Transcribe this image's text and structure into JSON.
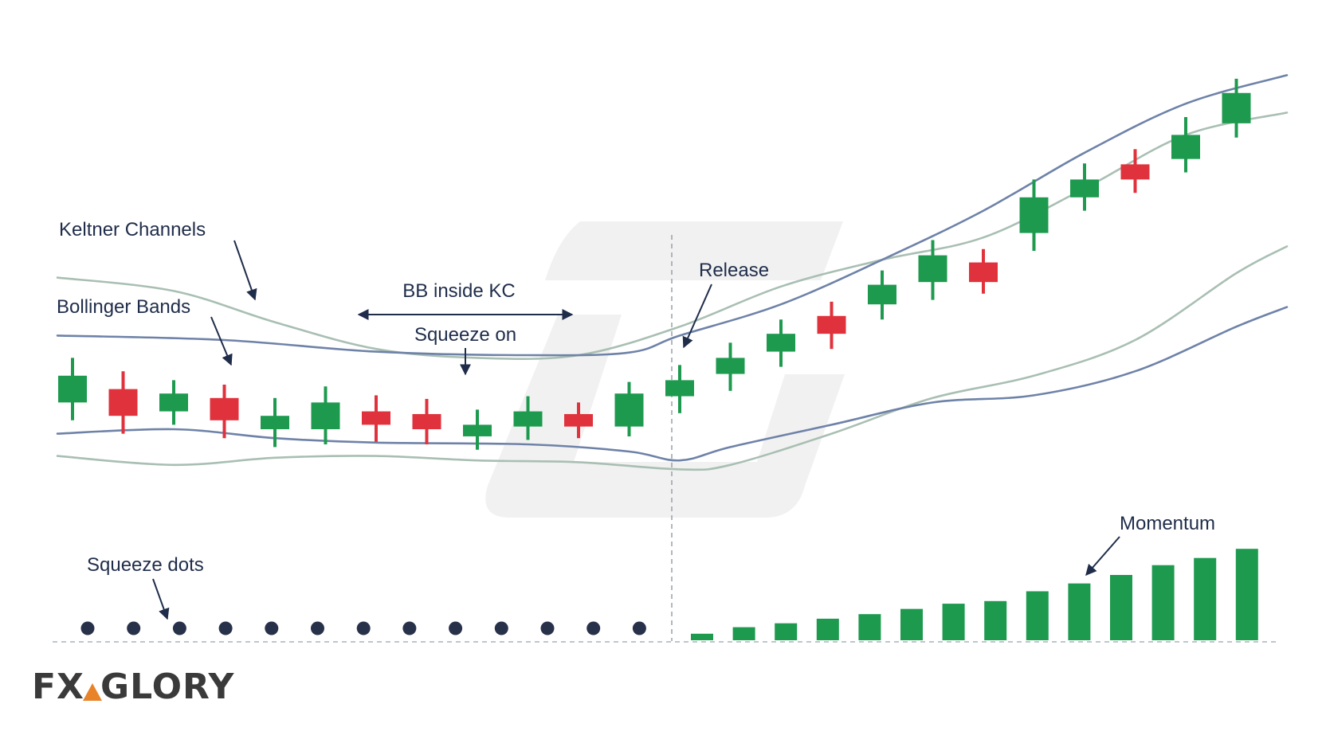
{
  "colors": {
    "bull": "#1e9a4f",
    "bear": "#e0323c",
    "bollinger": "#6e82a8",
    "keltner": "#a9bfb3",
    "squeeze_dot": "#27324a",
    "momentum": "#1e9a4f",
    "annotation": "#1f2d4a",
    "logo_text": "#3a3a3a",
    "logo_accent": "#e8832a",
    "watermark": "#f0f0f0"
  },
  "chart_data": {
    "type": "candlestick",
    "candles": [
      {
        "open": 1.1,
        "close": 0.8,
        "high": 1.3,
        "low": 0.6
      },
      {
        "open": 0.95,
        "close": 0.65,
        "high": 1.15,
        "low": 0.45
      },
      {
        "open": 0.9,
        "close": 0.7,
        "high": 1.05,
        "low": 0.55
      },
      {
        "open": 0.85,
        "close": 0.6,
        "high": 1.0,
        "low": 0.4
      },
      {
        "open": 0.65,
        "close": 0.5,
        "high": 0.85,
        "low": 0.3
      },
      {
        "open": 0.8,
        "close": 0.5,
        "high": 0.98,
        "low": 0.33
      },
      {
        "open": 0.7,
        "close": 0.55,
        "high": 0.88,
        "low": 0.36
      },
      {
        "open": 0.67,
        "close": 0.5,
        "high": 0.84,
        "low": 0.33
      },
      {
        "open": 0.55,
        "close": 0.42,
        "high": 0.72,
        "low": 0.27
      },
      {
        "open": 0.7,
        "close": 0.53,
        "high": 0.87,
        "low": 0.38
      },
      {
        "open": 0.67,
        "close": 0.53,
        "high": 0.8,
        "low": 0.4
      },
      {
        "open": 0.9,
        "close": 0.53,
        "high": 1.03,
        "low": 0.42
      },
      {
        "open": 1.05,
        "close": 0.87,
        "high": 1.22,
        "low": 0.68
      },
      {
        "open": 1.3,
        "close": 1.12,
        "high": 1.47,
        "low": 0.93
      },
      {
        "open": 1.57,
        "close": 1.37,
        "high": 1.73,
        "low": 1.2
      },
      {
        "open": 1.77,
        "close": 1.57,
        "high": 1.93,
        "low": 1.4
      },
      {
        "open": 2.12,
        "close": 1.9,
        "high": 2.28,
        "low": 1.73
      },
      {
        "open": 2.45,
        "close": 2.15,
        "high": 2.62,
        "low": 1.95
      },
      {
        "open": 2.37,
        "close": 2.15,
        "high": 2.52,
        "low": 2.02
      },
      {
        "open": 3.1,
        "close": 2.7,
        "high": 3.3,
        "low": 2.5
      },
      {
        "open": 3.3,
        "close": 3.1,
        "high": 3.48,
        "low": 2.95
      },
      {
        "open": 3.47,
        "close": 3.3,
        "high": 3.64,
        "low": 3.15
      },
      {
        "open": 3.8,
        "close": 3.53,
        "high": 4.0,
        "low": 3.38
      },
      {
        "open": 4.27,
        "close": 3.93,
        "high": 4.43,
        "low": 3.77
      }
    ],
    "bollinger_upper": [
      [
        0,
        1.55
      ],
      [
        3,
        1.5
      ],
      [
        6,
        1.37
      ],
      [
        9,
        1.33
      ],
      [
        11,
        1.36
      ],
      [
        12,
        1.55
      ],
      [
        14,
        1.9
      ],
      [
        16,
        2.4
      ],
      [
        18,
        2.95
      ],
      [
        20,
        3.6
      ],
      [
        22,
        4.15
      ],
      [
        24,
        4.47
      ]
    ],
    "bollinger_lower": [
      [
        0,
        0.45
      ],
      [
        2,
        0.5
      ],
      [
        4,
        0.4
      ],
      [
        6,
        0.35
      ],
      [
        9,
        0.33
      ],
      [
        11,
        0.25
      ],
      [
        12,
        0.15
      ],
      [
        13,
        0.3
      ],
      [
        15,
        0.55
      ],
      [
        17,
        0.8
      ],
      [
        19,
        0.88
      ],
      [
        21,
        1.15
      ],
      [
        23,
        1.65
      ],
      [
        24,
        1.87
      ]
    ],
    "keltner_upper": [
      [
        0,
        2.2
      ],
      [
        2,
        2.05
      ],
      [
        4,
        1.7
      ],
      [
        6,
        1.4
      ],
      [
        8,
        1.3
      ],
      [
        10,
        1.33
      ],
      [
        12,
        1.65
      ],
      [
        14,
        2.1
      ],
      [
        16,
        2.4
      ],
      [
        18,
        2.65
      ],
      [
        20,
        3.2
      ],
      [
        22,
        3.8
      ],
      [
        24,
        4.05
      ]
    ],
    "keltner_lower": [
      [
        0,
        0.2
      ],
      [
        2,
        0.1
      ],
      [
        4,
        0.18
      ],
      [
        6,
        0.2
      ],
      [
        8,
        0.15
      ],
      [
        10,
        0.13
      ],
      [
        12,
        0.05
      ],
      [
        13,
        0.1
      ],
      [
        15,
        0.45
      ],
      [
        17,
        0.85
      ],
      [
        19,
        1.1
      ],
      [
        21,
        1.5
      ],
      [
        23,
        2.25
      ],
      [
        24,
        2.55
      ]
    ],
    "squeeze_dots": 13,
    "momentum": [
      1,
      2,
      2.6,
      3.3,
      4,
      4.8,
      5.6,
      6,
      7.5,
      8.7,
      10,
      11.5,
      12.6,
      14
    ]
  },
  "annotations": {
    "keltner": "Keltner Channels",
    "bollinger": "Bollinger Bands",
    "bb_inside_kc": "BB inside KC",
    "squeeze_on": "Squeeze on",
    "release": "Release",
    "momentum": "Momentum",
    "squeeze_dots": "Squeeze dots"
  },
  "logo": {
    "left": "FX",
    "right": "GLORY"
  }
}
